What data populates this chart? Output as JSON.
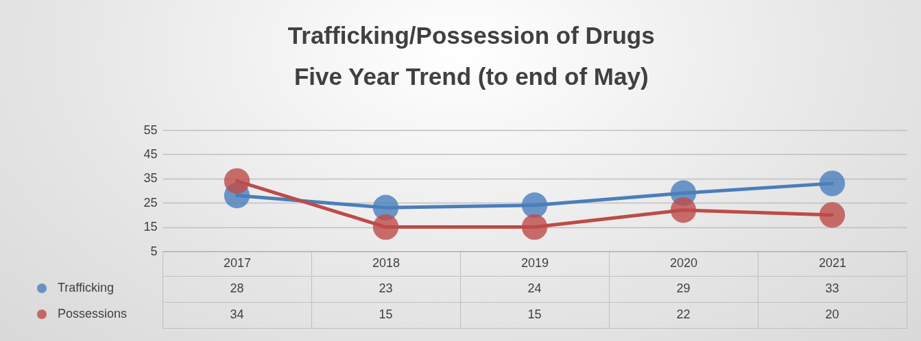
{
  "chart_data": {
    "type": "line",
    "title": "Trafficking/Possession of Drugs\nFive Year Trend (to end of May)",
    "categories": [
      "2017",
      "2018",
      "2019",
      "2020",
      "2021"
    ],
    "series": [
      {
        "name": "Trafficking",
        "color": "#4a7ebb",
        "values": [
          28,
          23,
          24,
          29,
          33
        ],
        "value_labels": [
          "28",
          "23",
          "24",
          "29",
          "33"
        ]
      },
      {
        "name": "Possessions",
        "color": "#be4b48",
        "values": [
          34,
          15,
          15,
          22,
          20
        ],
        "value_labels": [
          "34",
          "15",
          "15",
          "22",
          "20"
        ]
      }
    ],
    "ylim": [
      5,
      55
    ],
    "yticks": [
      5,
      15,
      25,
      35,
      45,
      55
    ],
    "grid": "y",
    "marker": "circle",
    "line_style": "solid",
    "legend": "bottom left"
  }
}
